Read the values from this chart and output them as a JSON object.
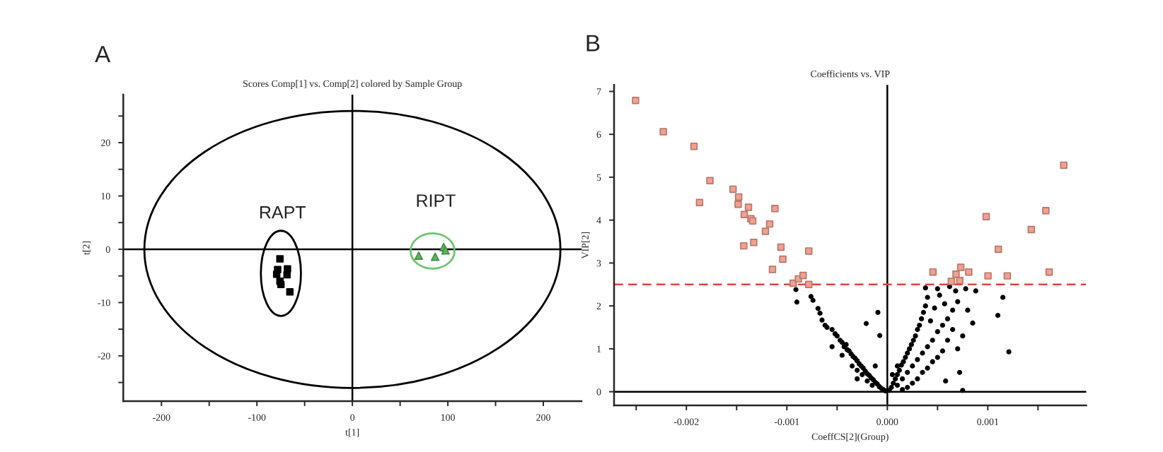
{
  "chart_data": [
    {
      "type": "scatter",
      "title": "Scores Comp[1] vs. Comp[2] colored by Sample Group",
      "xlabel": "t[1]",
      "ylabel": "t[2]",
      "annotations": [
        "A"
      ],
      "xlim": [
        -240,
        240
      ],
      "ylim": [
        -28.5,
        29
      ],
      "xticks": [
        -200,
        {
          "value": -150,
          "label": null
        },
        -100,
        {
          "value": -50,
          "label": null
        },
        0,
        {
          "value": 50,
          "label": null
        },
        100,
        {
          "value": 150,
          "label": null
        },
        200
      ],
      "yticks": [
        {
          "value": -25,
          "label": null
        },
        -20,
        {
          "value": -15,
          "label": null
        },
        -10,
        {
          "value": -5,
          "label": null
        },
        0,
        {
          "value": 5,
          "label": null
        },
        10,
        {
          "value": 15,
          "label": null
        },
        20,
        {
          "value": 25,
          "label": null
        }
      ],
      "ref_lines": [
        {
          "axis": "x",
          "value": 0,
          "color": "#000000"
        },
        {
          "axis": "y",
          "value": 0,
          "color": "#000000"
        }
      ],
      "series": [
        {
          "name": "RAPT",
          "marker": "square",
          "color": "#000000",
          "x": [
            -75.9,
            -78.3,
            -68,
            -79.3,
            -68.5,
            -75.9,
            -74.9,
            -65.5
          ],
          "values": [
            -1.8,
            -3.8,
            -3.7,
            -4.7,
            -4.8,
            -6,
            -6.6,
            -8
          ]
        },
        {
          "name": "RIPT",
          "marker": "triangle",
          "color": "#5cb85c",
          "x": [
            69.5,
            86.7,
            95.6,
            97.5
          ],
          "values": [
            -1.2,
            -1.4,
            0.4,
            -0.2
          ]
        }
      ]
    },
    {
      "type": "scatter",
      "title": "Coefficients vs. VIP",
      "xlabel": "CoeffCS[2](Group)",
      "ylabel": "VIP[2]",
      "annotations": [
        "B"
      ],
      "xlim": [
        -0.00272,
        0.00198
      ],
      "ylim": [
        -0.32,
        7.15
      ],
      "xticks": [
        {
          "value": -0.0025,
          "label": null
        },
        {
          "value": -0.002,
          "label": "-0.002"
        },
        {
          "value": -0.0015,
          "label": null
        },
        {
          "value": -0.001,
          "label": "-0.001"
        },
        {
          "value": -0.0005,
          "label": null
        },
        {
          "value": 0,
          "label": "0.000"
        },
        {
          "value": 0.0005,
          "label": null
        },
        {
          "value": 0.001,
          "label": "0.001"
        },
        {
          "value": 0.0015,
          "label": null
        }
      ],
      "yticks": [
        0,
        1,
        2,
        3,
        4,
        5,
        6,
        7
      ],
      "ref_lines": [
        {
          "axis": "x",
          "value": 0,
          "color": "#000000"
        },
        {
          "axis": "y",
          "value": 0,
          "color": "#000000"
        },
        {
          "axis": "y",
          "value": 2.5,
          "color": "#e0483a",
          "line_style": "dashed"
        }
      ],
      "series": [
        {
          "marker": "circle",
          "color": "#000000",
          "x": [
            -0.00091,
            -0.0009,
            -0.00076,
            -0.00074,
            -0.00069,
            -0.00067,
            -0.00065,
            -0.00062,
            -0.0006,
            -0.00055,
            -0.00052,
            -0.0005,
            -0.00047,
            -0.00045,
            -0.00043,
            -0.00041,
            -0.0004,
            -0.00038,
            -0.00036,
            -0.00034,
            -0.00032,
            -0.0003,
            -0.00028,
            -0.00026,
            -0.00024,
            -0.00022,
            -0.0002,
            -0.00018,
            -0.00016,
            -0.00014,
            -0.00012,
            -0.0001,
            -8e-05,
            -6e-05,
            -4e-05,
            -2e-05,
            -0.0003,
            -0.00025,
            -0.0002,
            -0.00015,
            -0.00035,
            -0.00045,
            -0.00055,
            -0.00021,
            -7.5e-05,
            -9.4e-05,
            -0.00012,
            -0.0003,
            2e-05,
            4e-05,
            6e-05,
            8e-05,
            0.0001,
            0.00012,
            0.00014,
            0.00016,
            0.00018,
            0.0002,
            0.00022,
            0.00024,
            0.00026,
            0.00028,
            0.0003,
            0.00032,
            0.00034,
            0.00036,
            0.00038,
            0.0004,
            0.00038,
            0.0001,
            0.00015,
            0.0002,
            0.00025,
            0.0003,
            0.00035,
            0.0004,
            0.00045,
            0.0005,
            0.00055,
            0.0006,
            0.00065,
            0.0007,
            0.00068,
            0.00062,
            0.00052,
            0.00047,
            0.00043,
            0.00057,
            0.0006,
            0.00055,
            0.0005,
            0.00045,
            0.0004,
            0.00035,
            0.0003,
            0.00025,
            0.0002,
            0.00015,
            0.00072,
            0.00075,
            0.00121,
            0.0011,
            0.00115,
            0.00085,
            0.0008,
            0.00088,
            0.00078,
            0.00075,
            0.0007,
            0.00065,
            0.00058,
            0.0005,
            0.0001,
            5e-05
          ],
          "values": [
            2.38,
            2.09,
            2.22,
            2.13,
            1.94,
            1.83,
            1.67,
            1.55,
            1.5,
            1.45,
            1.35,
            1.3,
            1.2,
            1.15,
            1.05,
            1.1,
            0.98,
            0.95,
            0.88,
            0.82,
            0.78,
            0.72,
            0.65,
            0.6,
            0.55,
            0.48,
            0.42,
            0.38,
            0.32,
            0.28,
            0.22,
            0.18,
            0.12,
            0.08,
            0.05,
            0.02,
            0.5,
            0.4,
            0.25,
            0.15,
            0.6,
            0.85,
            1.05,
            1.59,
            1.31,
            1.85,
            0.6,
            0.3,
            0.03,
            0.1,
            0.2,
            0.3,
            0.4,
            0.5,
            0.62,
            0.7,
            0.8,
            0.9,
            1.0,
            1.1,
            1.2,
            1.3,
            1.45,
            1.55,
            1.7,
            1.85,
            2.0,
            2.2,
            2.42,
            0.15,
            0.3,
            0.45,
            0.6,
            0.75,
            0.9,
            1.05,
            1.2,
            1.4,
            1.55,
            1.7,
            1.9,
            2.1,
            2.35,
            2.45,
            2.25,
            1.95,
            1.65,
            2.05,
            1.2,
            0.95,
            0.8,
            0.7,
            0.55,
            0.45,
            0.3,
            0.2,
            0.1,
            0.05,
            0.45,
            0.03,
            0.93,
            1.78,
            2.2,
            1.6,
            1.9,
            2.35,
            2.4,
            1.3,
            1.0,
            1.45,
            0.25,
            2.4,
            0.6,
            0.4
          ]
        },
        {
          "marker": "square",
          "color": "#f2a090",
          "x": [
            -0.002506,
            -0.00223,
            -0.001925,
            -0.001766,
            -0.001869,
            -0.001536,
            -0.00148,
            -0.001485,
            -0.001382,
            -0.001424,
            -0.001358,
            -0.00134,
            -0.001119,
            -0.001171,
            -0.001213,
            -0.001429,
            -0.00133,
            -0.001059,
            -0.00104,
            -0.000782,
            -0.001143,
            -0.000937,
            -0.000885,
            -0.000838,
            -0.000782,
            0.001756,
            0.001578,
            0.000984,
            0.001433,
            0.001105,
            0.000454,
            0.000731,
            0.000684,
            0.00081,
            0.000637,
            0.000721,
            0.001002,
            0.001194,
            0.001611
          ],
          "values": [
            6.79,
            6.06,
            5.72,
            4.92,
            4.41,
            4.72,
            4.54,
            4.37,
            4.3,
            4.13,
            4.03,
            3.98,
            4.27,
            3.91,
            3.74,
            3.4,
            3.48,
            3.37,
            3.09,
            3.28,
            2.85,
            2.53,
            2.63,
            2.71,
            2.5,
            5.28,
            4.22,
            4.08,
            3.78,
            3.32,
            2.79,
            2.9,
            2.74,
            2.79,
            2.57,
            2.59,
            2.7,
            2.7,
            2.79
          ]
        }
      ]
    }
  ]
}
